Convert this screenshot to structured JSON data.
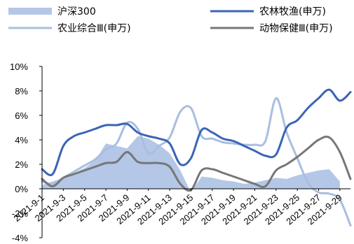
{
  "chart_data": {
    "type": "line",
    "x": [
      "2021-9-1",
      "2021-9-2",
      "2021-9-3",
      "2021-9-4",
      "2021-9-5",
      "2021-9-6",
      "2021-9-7",
      "2021-9-8",
      "2021-9-9",
      "2021-9-10",
      "2021-9-11",
      "2021-9-12",
      "2021-9-13",
      "2021-9-14",
      "2021-9-15",
      "2021-9-16",
      "2021-9-17",
      "2021-9-18",
      "2021-9-19",
      "2021-9-20",
      "2021-9-21",
      "2021-9-22",
      "2021-9-23",
      "2021-9-24",
      "2021-9-25",
      "2021-9-26",
      "2021-9-27",
      "2021-9-28",
      "2021-9-29",
      "2021-9-30"
    ],
    "tick_labels": [
      "2021-9-1",
      "2021-9-3",
      "2021-9-5",
      "2021-9-7",
      "2021-9-9",
      "2021-9-11",
      "2021-9-13",
      "2021-9-15",
      "2021-9-17",
      "2021-9-19",
      "2021-9-21",
      "2021-9-23",
      "2021-9-25",
      "2021-9-27",
      "2021-9-29"
    ],
    "ylim": [
      -4,
      10
    ],
    "yticks": [
      -4,
      -2,
      0,
      2,
      4,
      6,
      8,
      10
    ],
    "ytick_labels": [
      "-4%",
      "-2%",
      "0%",
      "2%",
      "4%",
      "6%",
      "8%",
      "10%"
    ],
    "grid": false,
    "legend_position": "top",
    "series": [
      {
        "name": "沪深300",
        "kind": "area",
        "color": "#b4c7e7",
        "values": [
          0.3,
          0.6,
          0.9,
          1.3,
          1.7,
          2.3,
          3.7,
          3.5,
          3.3,
          4.3,
          4.1,
          3.6,
          2.9,
          1.5,
          -0.3,
          1.0,
          0.9,
          0.7,
          0.6,
          0.4,
          0.5,
          0.7,
          0.9,
          0.8,
          1.1,
          1.3,
          1.5,
          1.6,
          0.6,
          null
        ]
      },
      {
        "name": "农林牧渔(申万)",
        "kind": "line",
        "color": "#3a64b5",
        "values": [
          1.6,
          1.2,
          3.5,
          4.3,
          4.6,
          4.9,
          5.2,
          5.2,
          5.3,
          4.6,
          4.3,
          4.1,
          3.7,
          2.0,
          2.5,
          4.8,
          4.6,
          4.1,
          3.9,
          3.5,
          3.1,
          2.7,
          2.8,
          5.0,
          5.6,
          6.6,
          7.4,
          8.1,
          7.2,
          7.9
        ]
      },
      {
        "name": "农业综合Ⅲ(申万)",
        "kind": "line",
        "color": "#a9bee0",
        "values": [
          0.6,
          0.4,
          0.9,
          1.4,
          1.9,
          2.4,
          3.2,
          3.7,
          5.4,
          4.9,
          2.9,
          3.5,
          4.2,
          6.3,
          6.6,
          4.3,
          4.1,
          3.8,
          3.7,
          3.6,
          3.6,
          3.9,
          7.4,
          4.6,
          2.5,
          0.5,
          -0.3,
          -0.4,
          -0.9,
          -3.0
        ]
      },
      {
        "name": "动物保健Ⅲ(申万)",
        "kind": "line",
        "color": "#777777",
        "values": [
          0.8,
          0.2,
          0.9,
          1.2,
          1.5,
          1.8,
          2.1,
          2.2,
          3.0,
          2.2,
          2.1,
          2.1,
          1.8,
          0.4,
          -0.1,
          1.5,
          1.6,
          1.3,
          1.0,
          0.7,
          0.4,
          0.2,
          1.5,
          2.0,
          2.6,
          3.3,
          4.0,
          4.2,
          3.0,
          0.8
        ]
      }
    ]
  }
}
